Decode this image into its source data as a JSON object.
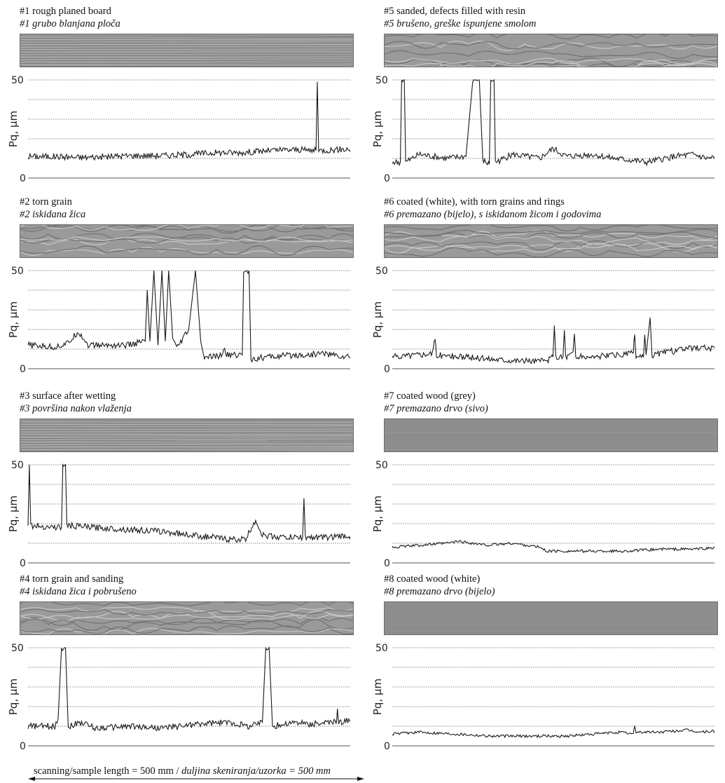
{
  "footer": {
    "text_en": "scanning/sample length = 500 mm / ",
    "text_hr": "duljina skeniranja/uzorka = 500 mm"
  },
  "chart_data": [
    {
      "type": "line",
      "id": "p1",
      "title": "#1 rough planed board",
      "subtitle": "#1 grubo blanjana ploča",
      "ylabel": "Pq, µm",
      "ylim": [
        0,
        50
      ],
      "y_ticks": [
        0,
        50
      ],
      "x_range_mm": [
        0,
        500
      ],
      "series": [
        {
          "name": "",
          "values": [
            [
              0,
              11
            ],
            [
              40,
              11
            ],
            [
              80,
              10.5
            ],
            [
              120,
              11
            ],
            [
              160,
              11.5
            ],
            [
              200,
              11.5
            ],
            [
              240,
              12
            ],
            [
              280,
              13
            ],
            [
              320,
              13
            ],
            [
              360,
              14
            ],
            [
              400,
              14.5
            ],
            [
              430,
              14
            ],
            [
              432,
              49
            ],
            [
              434,
              14
            ],
            [
              460,
              14.5
            ],
            [
              500,
              15
            ]
          ]
        }
      ],
      "texture": "uniform-fine",
      "color": "#1a1a1a"
    },
    {
      "type": "line",
      "id": "p2",
      "title": "#2 torn grain",
      "subtitle": "#2 iskidana žica",
      "ylabel": "Pq, µm",
      "ylim": [
        0,
        50
      ],
      "y_ticks": [
        0,
        50
      ],
      "x_range_mm": [
        0,
        500
      ],
      "series": [
        {
          "name": "",
          "values": [
            [
              0,
              12
            ],
            [
              40,
              11
            ],
            [
              60,
              13
            ],
            [
              75,
              19
            ],
            [
              90,
              12
            ],
            [
              120,
              12
            ],
            [
              150,
              12
            ],
            [
              175,
              14
            ],
            [
              178,
              40
            ],
            [
              182,
              14
            ],
            [
              188,
              50
            ],
            [
              194,
              12
            ],
            [
              200,
              50
            ],
            [
              205,
              14
            ],
            [
              210,
              50
            ],
            [
              216,
              16
            ],
            [
              222,
              10
            ],
            [
              240,
              20
            ],
            [
              250,
              50
            ],
            [
              258,
              14
            ],
            [
              262,
              6
            ],
            [
              280,
              6
            ],
            [
              290,
              7
            ],
            [
              292,
              11
            ],
            [
              295,
              7
            ],
            [
              320,
              7
            ],
            [
              322,
              50
            ],
            [
              330,
              50
            ],
            [
              333,
              5
            ],
            [
              360,
              6
            ],
            [
              400,
              7
            ],
            [
              420,
              7
            ],
            [
              440,
              8
            ],
            [
              470,
              6
            ],
            [
              500,
              6
            ]
          ]
        }
      ],
      "texture": "wavy",
      "color": "#1a1a1a"
    },
    {
      "type": "line",
      "id": "p3",
      "title": "#3 surface after wetting",
      "subtitle": "#3 površina nakon vlaženja",
      "ylabel": "Pq, µm",
      "ylim": [
        0,
        50
      ],
      "y_ticks": [
        0,
        50
      ],
      "x_range_mm": [
        0,
        500
      ],
      "series": [
        {
          "name": "",
          "values": [
            [
              0,
              19
            ],
            [
              2,
              50
            ],
            [
              4,
              19
            ],
            [
              50,
              18
            ],
            [
              52,
              50
            ],
            [
              56,
              50
            ],
            [
              58,
              19
            ],
            [
              100,
              18
            ],
            [
              150,
              17
            ],
            [
              200,
              16
            ],
            [
              250,
              14
            ],
            [
              300,
              12
            ],
            [
              325,
              12
            ],
            [
              340,
              22
            ],
            [
              350,
              14
            ],
            [
              380,
              13
            ],
            [
              410,
              13
            ],
            [
              412,
              33
            ],
            [
              414,
              13
            ],
            [
              440,
              13
            ],
            [
              500,
              14
            ]
          ]
        }
      ],
      "texture": "dense-lines",
      "color": "#1a1a1a"
    },
    {
      "type": "line",
      "id": "p4",
      "title": "#4 torn grain and sanding",
      "subtitle": "#4 iskidana žica i pobrušeno",
      "ylabel": "Pq, µm",
      "ylim": [
        0,
        50
      ],
      "y_ticks": [
        0,
        50
      ],
      "x_range_mm": [
        0,
        500
      ],
      "series": [
        {
          "name": "",
          "values": [
            [
              0,
              10
            ],
            [
              40,
              10
            ],
            [
              45,
              14
            ],
            [
              50,
              50
            ],
            [
              56,
              50
            ],
            [
              60,
              10
            ],
            [
              80,
              12
            ],
            [
              100,
              9
            ],
            [
              150,
              10
            ],
            [
              200,
              9
            ],
            [
              250,
              11
            ],
            [
              300,
              12
            ],
            [
              330,
              10
            ],
            [
              350,
              12
            ],
            [
              355,
              50
            ],
            [
              360,
              50
            ],
            [
              365,
              10
            ],
            [
              400,
              12
            ],
            [
              420,
              11
            ],
            [
              460,
              12
            ],
            [
              462,
              18
            ],
            [
              464,
              12
            ],
            [
              500,
              14
            ]
          ]
        }
      ],
      "texture": "rings",
      "color": "#1a1a1a"
    },
    {
      "type": "line",
      "id": "p5",
      "title": "#5 sanded, defects filled with resin",
      "subtitle": "#5 brušeno, greške ispunjene smolom",
      "ylabel": "Pq, µm",
      "ylim": [
        0,
        50
      ],
      "y_ticks": [
        0,
        50
      ],
      "x_range_mm": [
        0,
        500
      ],
      "series": [
        {
          "name": "",
          "values": [
            [
              0,
              8
            ],
            [
              12,
              8
            ],
            [
              14,
              50
            ],
            [
              18,
              50
            ],
            [
              20,
              8
            ],
            [
              40,
              12
            ],
            [
              80,
              10
            ],
            [
              110,
              11
            ],
            [
              120,
              50
            ],
            [
              125,
              50
            ],
            [
              130,
              50
            ],
            [
              135,
              9
            ],
            [
              145,
              7
            ],
            [
              147,
              50
            ],
            [
              152,
              50
            ],
            [
              154,
              8
            ],
            [
              180,
              12
            ],
            [
              220,
              10
            ],
            [
              240,
              15
            ],
            [
              260,
              11
            ],
            [
              300,
              12
            ],
            [
              330,
              10
            ],
            [
              360,
              9
            ],
            [
              380,
              8
            ],
            [
              420,
              11
            ],
            [
              450,
              12
            ],
            [
              470,
              10
            ],
            [
              500,
              11
            ]
          ]
        }
      ],
      "texture": "rings",
      "color": "#1a1a1a"
    },
    {
      "type": "line",
      "id": "p6",
      "title": "#6 coated (white), with torn grains and rings",
      "subtitle": "#6 premazano (bijelo), s iskidanom žicom i godovima",
      "ylabel": "Pq, µm",
      "ylim": [
        0,
        50
      ],
      "y_ticks": [
        0,
        50
      ],
      "x_range_mm": [
        0,
        500
      ],
      "series": [
        {
          "name": "",
          "values": [
            [
              0,
              6
            ],
            [
              30,
              7
            ],
            [
              60,
              8
            ],
            [
              64,
              15
            ],
            [
              66,
              7
            ],
            [
              100,
              6
            ],
            [
              150,
              5
            ],
            [
              200,
              4
            ],
            [
              230,
              4
            ],
            [
              240,
              6
            ],
            [
              242,
              22
            ],
            [
              244,
              6
            ],
            [
              255,
              6
            ],
            [
              257,
              20
            ],
            [
              259,
              6
            ],
            [
              270,
              8
            ],
            [
              272,
              18
            ],
            [
              274,
              6
            ],
            [
              300,
              6
            ],
            [
              340,
              7
            ],
            [
              360,
              8
            ],
            [
              362,
              18
            ],
            [
              364,
              6
            ],
            [
              375,
              6
            ],
            [
              377,
              16
            ],
            [
              379,
              7
            ],
            [
              385,
              26
            ],
            [
              388,
              7
            ],
            [
              400,
              8
            ],
            [
              420,
              9
            ],
            [
              440,
              10
            ],
            [
              460,
              11
            ],
            [
              480,
              10
            ],
            [
              500,
              11
            ]
          ]
        }
      ],
      "texture": "wavy",
      "color": "#1a1a1a"
    },
    {
      "type": "line",
      "id": "p7",
      "title": "#7 coated wood (grey)",
      "subtitle": "#7 premazano drvo (sivo)",
      "ylabel": "Pq, µm",
      "ylim": [
        0,
        50
      ],
      "y_ticks": [
        0,
        50
      ],
      "x_range_mm": [
        0,
        500
      ],
      "series": [
        {
          "name": "",
          "values": [
            [
              0,
              8
            ],
            [
              40,
              9
            ],
            [
              80,
              10
            ],
            [
              100,
              11
            ],
            [
              140,
              9
            ],
            [
              180,
              10
            ],
            [
              220,
              8
            ],
            [
              230,
              6
            ],
            [
              260,
              6
            ],
            [
              300,
              6
            ],
            [
              350,
              6
            ],
            [
              400,
              7
            ],
            [
              450,
              7
            ],
            [
              500,
              8
            ]
          ]
        }
      ],
      "texture": "flat",
      "color": "#1a1a1a"
    },
    {
      "type": "line",
      "id": "p8",
      "title": "#8 coated wood (white)",
      "subtitle": "#8 premazano drvo (bijelo)",
      "ylabel": "Pq, µm",
      "ylim": [
        0,
        50
      ],
      "y_ticks": [
        0,
        50
      ],
      "x_range_mm": [
        0,
        500
      ],
      "series": [
        {
          "name": "",
          "values": [
            [
              0,
              6
            ],
            [
              40,
              7
            ],
            [
              100,
              6
            ],
            [
              150,
              5
            ],
            [
              200,
              5
            ],
            [
              260,
              5
            ],
            [
              300,
              6
            ],
            [
              340,
              7
            ],
            [
              360,
              6
            ],
            [
              362,
              10
            ],
            [
              364,
              7
            ],
            [
              400,
              7
            ],
            [
              440,
              8
            ],
            [
              460,
              7
            ],
            [
              500,
              8
            ]
          ]
        }
      ],
      "texture": "flat",
      "color": "#1a1a1a"
    }
  ]
}
